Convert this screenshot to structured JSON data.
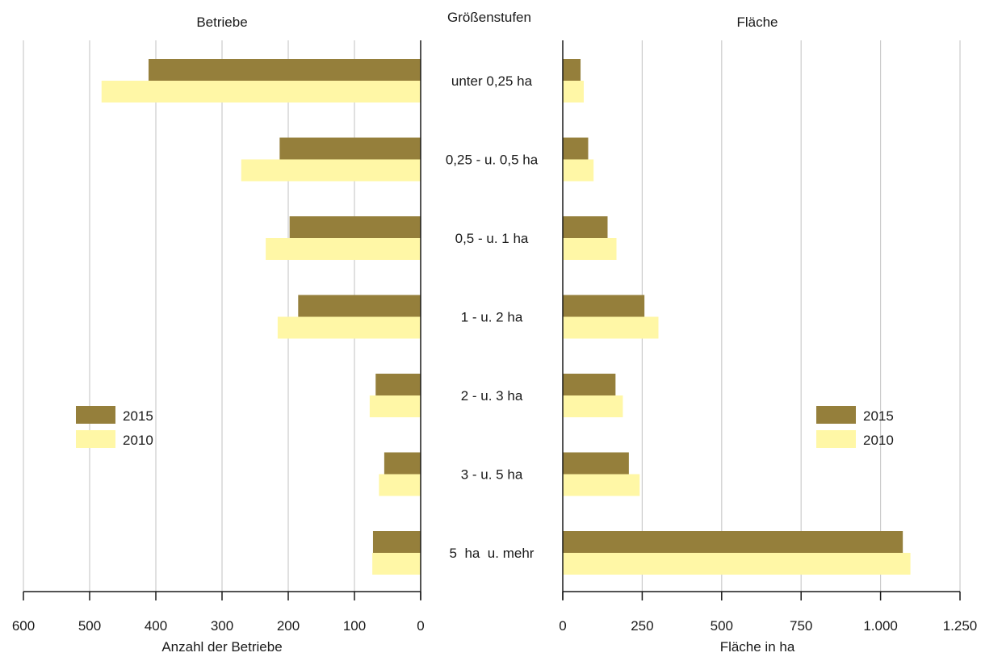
{
  "chart_data": {
    "type": "bar",
    "orientation": "horizontal",
    "center_label": "Größenstufen",
    "categories": [
      "unter 0,25 ha",
      "0,25 - u. 0,5 ha",
      "0,5 - u. 1 ha",
      "1 - u. 2 ha",
      "2 - u. 3 ha",
      "3 - u. 5 ha",
      "5  ha  u. mehr"
    ],
    "colors": {
      "2015": "#957f3b",
      "2010": "#fff7a6",
      "grid": "#cccccc",
      "axis": "#1a1a1a"
    },
    "panels": [
      {
        "title": "Betriebe",
        "xlabel": "Anzahl der Betriebe",
        "direction": "reversed",
        "xlim": [
          0,
          600
        ],
        "ticks": [
          600,
          500,
          400,
          300,
          200,
          100,
          0
        ],
        "tick_labels": [
          "600",
          "500",
          "400",
          "300",
          "200",
          "100",
          "0"
        ],
        "legend_position": "left",
        "series": [
          {
            "name": "2015",
            "values": [
              411,
              213,
              198,
              185,
              68,
              55,
              72
            ]
          },
          {
            "name": "2010",
            "values": [
              482,
              271,
              234,
              216,
              77,
              63,
              73
            ]
          }
        ]
      },
      {
        "title": "Fläche",
        "xlabel": "Fläche in ha",
        "direction": "normal",
        "xlim": [
          0,
          1250
        ],
        "ticks": [
          0,
          250,
          500,
          750,
          1000,
          1250
        ],
        "tick_labels": [
          "0",
          "250",
          "500",
          "750",
          "1.000",
          "1.250"
        ],
        "legend_position": "right",
        "series": [
          {
            "name": "2015",
            "values": [
              56,
              80,
              141,
              257,
              166,
              208,
              1070
            ]
          },
          {
            "name": "2010",
            "values": [
              66,
              97,
              169,
              301,
              189,
              242,
              1094
            ]
          }
        ]
      }
    ]
  }
}
